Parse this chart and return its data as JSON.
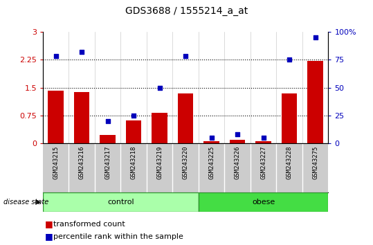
{
  "title": "GDS3688 / 1555214_a_at",
  "samples": [
    "GSM243215",
    "GSM243216",
    "GSM243217",
    "GSM243218",
    "GSM243219",
    "GSM243220",
    "GSM243225",
    "GSM243226",
    "GSM243227",
    "GSM243228",
    "GSM243275"
  ],
  "transformed_count": [
    1.42,
    1.38,
    0.22,
    0.62,
    0.82,
    1.35,
    0.05,
    0.09,
    0.05,
    1.35,
    2.22
  ],
  "percentile_rank": [
    78,
    82,
    20,
    25,
    50,
    78,
    5,
    8,
    5,
    75,
    95
  ],
  "bar_color": "#CC0000",
  "dot_color": "#0000BB",
  "left_ylim": [
    0,
    3
  ],
  "right_ylim": [
    0,
    100
  ],
  "left_yticks": [
    0,
    0.75,
    1.5,
    2.25,
    3
  ],
  "right_yticks": [
    0,
    25,
    50,
    75,
    100
  ],
  "left_ytick_labels": [
    "0",
    "0.75",
    "1.5",
    "2.25",
    "3"
  ],
  "right_ytick_labels": [
    "0",
    "25",
    "50",
    "75",
    "100%"
  ],
  "hlines": [
    0.75,
    1.5,
    2.25
  ],
  "legend_bar_label": "transformed count",
  "legend_dot_label": "percentile rank within the sample",
  "control_color": "#AAFFAA",
  "obese_color": "#44DD44",
  "tick_bg": "#CCCCCC",
  "n_control": 6,
  "n_obese": 5
}
